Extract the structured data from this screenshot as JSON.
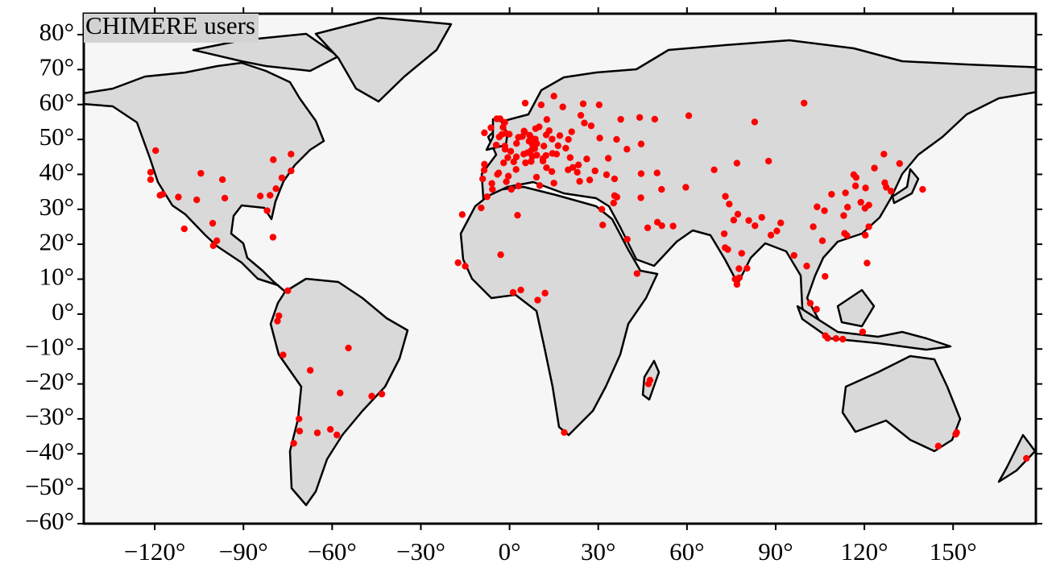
{
  "chart_data": {
    "type": "scatter",
    "title": "CHIMERE users",
    "color": "#ff0000",
    "xlim": [
      -144,
      178
    ],
    "ylim": [
      -60,
      86
    ],
    "xticks": [
      {
        "value": -120,
        "label": "−120°"
      },
      {
        "value": -90,
        "label": "−90°"
      },
      {
        "value": -60,
        "label": "−60°"
      },
      {
        "value": -30,
        "label": "−30°"
      },
      {
        "value": 0,
        "label": "0°"
      },
      {
        "value": 30,
        "label": "30°"
      },
      {
        "value": 60,
        "label": "60°"
      },
      {
        "value": 90,
        "label": "90°"
      },
      {
        "value": 120,
        "label": "120°"
      },
      {
        "value": 150,
        "label": "150°"
      }
    ],
    "yticks": [
      {
        "value": -60,
        "label": "−60°"
      },
      {
        "value": -50,
        "label": "−50°"
      },
      {
        "value": -40,
        "label": "−40°"
      },
      {
        "value": -30,
        "label": "−30°"
      },
      {
        "value": -20,
        "label": "−20°"
      },
      {
        "value": -10,
        "label": "−10°"
      },
      {
        "value": 0,
        "label": "0°"
      },
      {
        "value": 10,
        "label": "10°"
      },
      {
        "value": 20,
        "label": "20°"
      },
      {
        "value": 30,
        "label": "30°"
      },
      {
        "value": 40,
        "label": "40°"
      },
      {
        "value": 50,
        "label": "50°"
      },
      {
        "value": 60,
        "label": "60°"
      },
      {
        "value": 70,
        "label": "70°"
      },
      {
        "value": 80,
        "label": "80°"
      }
    ],
    "x": [
      -119.7,
      -121.4,
      -121.4,
      -117.3,
      -118.2,
      -112,
      -104.4,
      -105.8,
      -97.1,
      -96.3,
      -100.4,
      -99,
      -100.2,
      -110,
      -79.9,
      -73.9,
      -73.9,
      -77,
      -79,
      -81,
      -84.3,
      -82,
      -80,
      -75,
      -78,
      -78.5,
      -76.6,
      -67.4,
      -54.5,
      -57.3,
      -46.6,
      -43.2,
      -71.2,
      -71,
      -73,
      -65,
      -60.6,
      -58.4,
      -17.4,
      -15,
      -3,
      2.7,
      3.8,
      1.2,
      12,
      9.5,
      18.5,
      47.5,
      47,
      43.1,
      31.2,
      31.5,
      -7.6,
      -5.8,
      -9.6,
      -16,
      0.6,
      10.2,
      3,
      -9.1,
      -8.6,
      -8.5,
      -3.7,
      -6,
      -0.4,
      2.2,
      -2,
      -1.5,
      2.35,
      4.8,
      5.4,
      1.4,
      7.3,
      -0.6,
      7.7,
      3,
      -4.5,
      -1.6,
      6.1,
      7.4,
      8.5,
      11.3,
      9.2,
      12.5,
      14.3,
      15,
      9.1,
      11.3,
      12.3,
      7.7,
      4.35,
      4.9,
      5.1,
      6.8,
      7,
      8.7,
      9.2,
      11.6,
      13.4,
      10,
      12.4,
      -0.1,
      -1.3,
      -2.2,
      -3.2,
      -4.3,
      -6.3,
      -8.5,
      -1.6,
      10.7,
      18,
      24.9,
      12.6,
      17,
      21,
      19.9,
      14.4,
      16.4,
      19,
      26.1,
      23.3,
      23.7,
      22.9,
      28.9,
      32.8,
      27.1,
      35.5,
      30.5,
      37.6,
      30.3,
      27.6,
      24.1,
      25.3,
      14.5,
      15.9,
      20.5,
      21.4,
      19.8,
      5.3,
      15,
      36.2,
      33.4,
      39.7,
      44.5,
      -4.1,
      -1.1,
      0.4,
      2.3,
      6.6,
      8.8,
      -3.5,
      -2.6,
      44.4,
      46.7,
      50,
      51.5,
      55.3,
      51.4,
      35.5,
      36.3,
      35.2,
      39.8,
      59.6,
      69.2,
      76.9,
      82.9,
      60.6,
      49.1,
      44,
      49.9,
      44.5,
      99.6,
      87.6,
      73,
      74.3,
      77.2,
      75.8,
      72.6,
      72.9,
      73.8,
      77.6,
      80.3,
      78.5,
      76.3,
      76.9,
      77.7,
      88.4,
      90.4,
      85.3,
      83,
      80.9,
      91.7,
      100.5,
      96.2,
      105.8,
      106.7,
      101.7,
      103.8,
      106.8,
      107.6,
      110.4,
      112.7,
      120.9,
      119.4,
      116.4,
      117.2,
      121.5,
      120.2,
      118.8,
      113.3,
      114.1,
      114.3,
      104,
      106.5,
      108.9,
      113.6,
      117,
      120.4,
      123.4,
      126.6,
      126.9,
      127.4,
      129,
      139.7,
      131.9,
      121.5,
      120.3,
      113,
      102.7,
      145,
      151.2,
      150.9,
      174.8
    ],
    "values": [
      46.8,
      40.6,
      38.5,
      34.3,
      34.0,
      33.5,
      40.3,
      32.7,
      38.5,
      33.2,
      26,
      21,
      19.6,
      24.4,
      44.2,
      45.8,
      41,
      39,
      35.9,
      34,
      33.8,
      29.6,
      22,
      6.7,
      -0.5,
      -2,
      -11.7,
      -16.1,
      -9.7,
      -22.6,
      -23.5,
      -22.9,
      -30,
      -33.5,
      -37,
      -34,
      -33,
      -34.6,
      14.7,
      13.7,
      17,
      28.3,
      6.9,
      6.2,
      6,
      4,
      -33.9,
      -18.9,
      -20,
      11.6,
      30,
      25.5,
      33.6,
      35.7,
      30.4,
      28.5,
      35.7,
      36.8,
      36.7,
      38.7,
      41.2,
      42.9,
      40.4,
      37.4,
      39.5,
      41.4,
      43.3,
      47.2,
      48.85,
      45.8,
      43.3,
      43.6,
      43.7,
      44.8,
      48.6,
      50.6,
      48.4,
      48.1,
      46.2,
      46.9,
      47.4,
      44.5,
      45.5,
      41.9,
      40.8,
      37.5,
      39.2,
      43.8,
      45.4,
      45.1,
      50.85,
      52.4,
      52.1,
      51.2,
      50.9,
      50.1,
      48.8,
      48.1,
      52.5,
      53.6,
      51.3,
      51.5,
      51.75,
      53.5,
      55.9,
      55.9,
      53.35,
      51.9,
      54.9,
      59.9,
      59.3,
      60.2,
      55.7,
      51.1,
      52.2,
      50,
      50.1,
      48.2,
      47.5,
      44.4,
      42.7,
      38,
      40.6,
      41,
      39.9,
      38.4,
      38.7,
      50.4,
      55.75,
      59.9,
      53.9,
      56.9,
      54.7,
      46,
      45.8,
      44.8,
      42,
      41.3,
      60.4,
      62.4,
      50,
      44.6,
      47.2,
      48.7,
      40,
      37.9,
      46.6,
      45,
      49.5,
      53.1,
      50.7,
      51.45,
      33.3,
      24.7,
      26.3,
      25.3,
      25.2,
      35.7,
      33.9,
      33.5,
      31.8,
      21.4,
      36.3,
      41.3,
      43.2,
      55,
      56.8,
      55.8,
      56.3,
      40.4,
      40.2,
      60.4,
      43.8,
      33.7,
      31.5,
      28.6,
      26.9,
      23,
      19,
      18.5,
      13,
      13.1,
      17.4,
      10,
      8.5,
      10.4,
      22.6,
      23.8,
      27.7,
      25.3,
      26.8,
      26.1,
      13.75,
      16.8,
      21,
      10.8,
      3.1,
      1.35,
      -6.2,
      -6.9,
      -7,
      -7.2,
      14.6,
      -5.1,
      39.9,
      39.1,
      31.2,
      30.3,
      32,
      23.1,
      22.5,
      30.6,
      30.7,
      29.6,
      34.3,
      34.7,
      36.7,
      36.1,
      41.8,
      45.8,
      37.6,
      36.3,
      35.2,
      35.7,
      43.1,
      25,
      22.6,
      28.2,
      25,
      -37.8,
      -33.9,
      -34.4,
      -41.3
    ]
  }
}
